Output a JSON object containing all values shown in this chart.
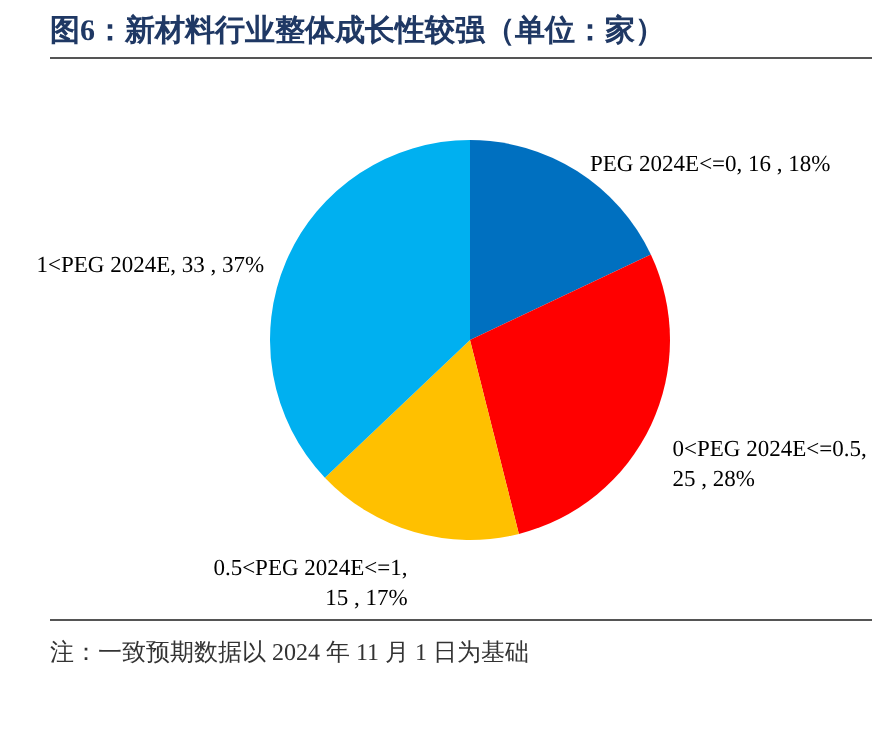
{
  "chart_data": {
    "type": "pie",
    "title": "图6：新材料行业整体成长性较强（单位：家）",
    "categories": [
      "PEG 2024E<=0",
      "0<PEG 2024E<=0.5",
      "0.5<PEG 2024E<=1",
      "1<PEG 2024E"
    ],
    "values": [
      16,
      25,
      15,
      33
    ],
    "colors": [
      "#0070c0",
      "#ff0000",
      "#ffc000",
      "#00b0f0"
    ],
    "value_labels": [
      ", 16 , 18%",
      ", 25 , 28%",
      ", 15 , 17%",
      ", 33 , 37%"
    ],
    "annotations": [
      "注：一致预期数据以 2024 年 11 月 1 日为基础"
    ]
  }
}
